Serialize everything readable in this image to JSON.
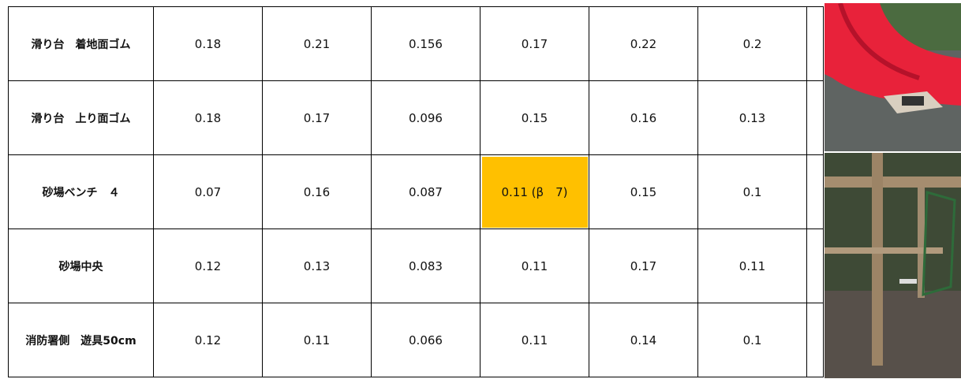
{
  "table": {
    "rows": [
      [
        "滑り台　着地面ゴム",
        0.18,
        0.21,
        0.156,
        0.17,
        0.22,
        0.2
      ],
      [
        "滑り台　上り面ゴム",
        0.18,
        0.17,
        0.096,
        0.15,
        0.16,
        0.13
      ],
      [
        "砂場ベンチ　４",
        0.07,
        0.16,
        0.087,
        "0.11 (β　7)",
        0.15,
        0.1
      ],
      [
        "砂場中央",
        0.12,
        0.13,
        0.083,
        0.11,
        0.17,
        0.11
      ],
      [
        "消防署側　遊具50cm",
        0.12,
        0.11,
        0.066,
        0.11,
        0.14,
        0.1
      ]
    ]
  }
}
